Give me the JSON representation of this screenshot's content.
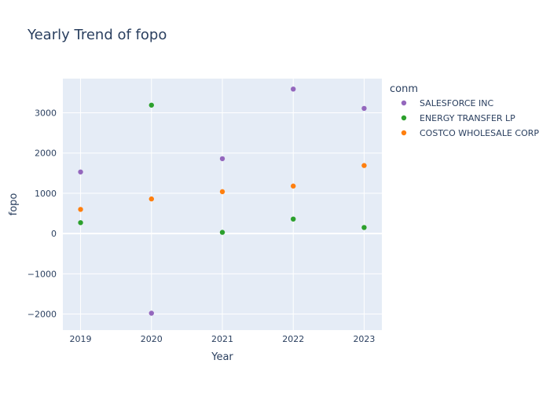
{
  "chart_data": {
    "type": "scatter",
    "title": "Yearly Trend of fopo",
    "xlabel": "Year",
    "ylabel": "fopo",
    "x": [
      2019,
      2020,
      2021,
      2022,
      2023
    ],
    "xticks": [
      "2019",
      "2020",
      "2021",
      "2022",
      "2023"
    ],
    "yticks": [
      -2000,
      -1000,
      0,
      1000,
      2000,
      3000
    ],
    "ytick_labels": [
      "−2000",
      "−1000",
      "0",
      "1000",
      "2000",
      "3000"
    ],
    "xlim": [
      2018.75,
      2023.25
    ],
    "ylim": [
      -2400,
      3850
    ],
    "grid": true,
    "legend_title": "conm",
    "legend_position": "right",
    "series": [
      {
        "name": "SALESFORCE INC",
        "color": "#9467bd",
        "values": [
          1530,
          -1980,
          1860,
          3590,
          3110
        ]
      },
      {
        "name": "ENERGY TRANSFER LP",
        "color": "#2ca02c",
        "values": [
          270,
          3190,
          30,
          360,
          150
        ]
      },
      {
        "name": "COSTCO WHOLESALE CORP",
        "color": "#ff7f0e",
        "values": [
          600,
          860,
          1040,
          1180,
          1690
        ]
      }
    ]
  }
}
